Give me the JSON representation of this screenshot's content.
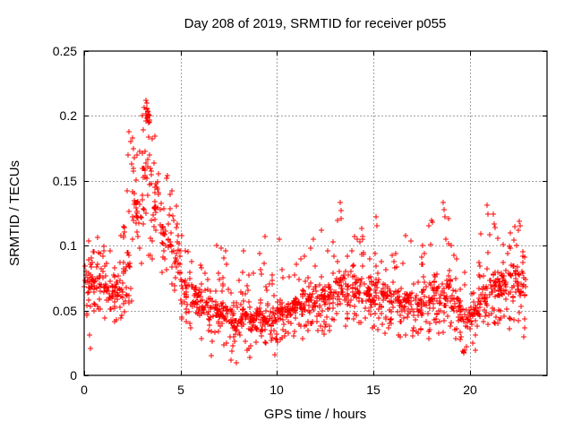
{
  "chart_data": {
    "type": "scatter",
    "title": "Day 208 of 2019, SRMTID for receiver p055",
    "xlabel": "GPS time / hours",
    "ylabel": "SRMTID / TECUs",
    "xlim": [
      0,
      24
    ],
    "ylim": [
      0,
      0.25
    ],
    "xticks": [
      {
        "v": 0,
        "label": "0"
      },
      {
        "v": 5,
        "label": "5"
      },
      {
        "v": 10,
        "label": "10"
      },
      {
        "v": 15,
        "label": "15"
      },
      {
        "v": 20,
        "label": "20"
      }
    ],
    "yticks": [
      {
        "v": 0,
        "label": "0"
      },
      {
        "v": 0.05,
        "label": "0.05"
      },
      {
        "v": 0.1,
        "label": "0.1"
      },
      {
        "v": 0.15,
        "label": "0.15"
      },
      {
        "v": 0.2,
        "label": "0.2"
      },
      {
        "v": 0.25,
        "label": "0.25"
      }
    ],
    "grid": true,
    "legend": "none",
    "marker": "plus",
    "marker_color": "#ff0000",
    "border_color": "#000000",
    "grid_color": "#a0a0a0",
    "background": "#ffffff",
    "data_x_extent": [
      0,
      22.9
    ],
    "peak": {
      "x": 3.25,
      "y": 0.212
    },
    "bin_format": [
      "t0",
      "t1",
      "min",
      "core_lo",
      "core_hi",
      "max",
      "n"
    ],
    "envelope_bins": [
      [
        0.0,
        0.5,
        0.04,
        0.055,
        0.085,
        0.105,
        36
      ],
      [
        0.5,
        1.0,
        0.042,
        0.055,
        0.088,
        0.112,
        36
      ],
      [
        1.0,
        1.5,
        0.04,
        0.052,
        0.08,
        0.1,
        34
      ],
      [
        1.5,
        2.0,
        0.04,
        0.05,
        0.082,
        0.11,
        34
      ],
      [
        2.0,
        2.5,
        0.048,
        0.062,
        0.11,
        0.19,
        32
      ],
      [
        2.5,
        3.0,
        0.07,
        0.1,
        0.155,
        0.197,
        32
      ],
      [
        3.0,
        3.5,
        0.09,
        0.125,
        0.185,
        0.21,
        34
      ],
      [
        3.5,
        4.0,
        0.085,
        0.105,
        0.16,
        0.185,
        30
      ],
      [
        4.0,
        4.5,
        0.06,
        0.085,
        0.135,
        0.168,
        30
      ],
      [
        4.5,
        5.0,
        0.05,
        0.068,
        0.11,
        0.14,
        30
      ],
      [
        5.0,
        5.5,
        0.038,
        0.05,
        0.082,
        0.1,
        34
      ],
      [
        5.5,
        6.0,
        0.032,
        0.045,
        0.075,
        0.095,
        34
      ],
      [
        6.0,
        6.5,
        0.025,
        0.04,
        0.07,
        0.092,
        34
      ],
      [
        6.5,
        7.0,
        0.015,
        0.035,
        0.065,
        0.088,
        34
      ],
      [
        7.0,
        7.5,
        0.018,
        0.032,
        0.062,
        0.098,
        36
      ],
      [
        7.5,
        8.0,
        0.01,
        0.03,
        0.055,
        0.075,
        36
      ],
      [
        8.0,
        8.5,
        0.015,
        0.032,
        0.058,
        0.092,
        36
      ],
      [
        8.5,
        9.0,
        0.015,
        0.03,
        0.055,
        0.08,
        36
      ],
      [
        9.0,
        9.5,
        0.02,
        0.033,
        0.058,
        0.095,
        36
      ],
      [
        9.5,
        10.0,
        0.018,
        0.03,
        0.055,
        0.085,
        36
      ],
      [
        10.0,
        10.5,
        0.025,
        0.038,
        0.062,
        0.09,
        36
      ],
      [
        10.5,
        11.0,
        0.028,
        0.04,
        0.065,
        0.088,
        36
      ],
      [
        11.0,
        11.5,
        0.028,
        0.04,
        0.068,
        0.092,
        36
      ],
      [
        11.5,
        12.0,
        0.03,
        0.042,
        0.072,
        0.1,
        36
      ],
      [
        12.0,
        12.5,
        0.028,
        0.042,
        0.075,
        0.108,
        36
      ],
      [
        12.5,
        13.0,
        0.032,
        0.045,
        0.078,
        0.105,
        34
      ],
      [
        13.0,
        13.5,
        0.035,
        0.048,
        0.085,
        0.125,
        34
      ],
      [
        13.5,
        14.0,
        0.035,
        0.048,
        0.08,
        0.105,
        34
      ],
      [
        14.0,
        14.5,
        0.038,
        0.05,
        0.08,
        0.11,
        34
      ],
      [
        14.5,
        15.0,
        0.032,
        0.045,
        0.075,
        0.105,
        34
      ],
      [
        15.0,
        15.5,
        0.035,
        0.048,
        0.08,
        0.115,
        34
      ],
      [
        15.5,
        16.0,
        0.032,
        0.045,
        0.072,
        0.1,
        34
      ],
      [
        16.0,
        16.5,
        0.028,
        0.042,
        0.07,
        0.1,
        34
      ],
      [
        16.5,
        17.0,
        0.028,
        0.04,
        0.07,
        0.105,
        34
      ],
      [
        17.0,
        17.5,
        0.028,
        0.04,
        0.068,
        0.095,
        34
      ],
      [
        17.5,
        18.0,
        0.028,
        0.042,
        0.075,
        0.112,
        34
      ],
      [
        18.0,
        18.5,
        0.032,
        0.045,
        0.08,
        0.12,
        34
      ],
      [
        18.5,
        19.0,
        0.032,
        0.045,
        0.08,
        0.125,
        34
      ],
      [
        19.0,
        19.5,
        0.028,
        0.04,
        0.07,
        0.095,
        34
      ],
      [
        19.5,
        20.0,
        0.015,
        0.03,
        0.06,
        0.08,
        32
      ],
      [
        20.0,
        20.5,
        0.018,
        0.032,
        0.062,
        0.088,
        34
      ],
      [
        20.5,
        21.0,
        0.028,
        0.042,
        0.075,
        0.12,
        34
      ],
      [
        21.0,
        21.5,
        0.038,
        0.052,
        0.085,
        0.12,
        36
      ],
      [
        21.5,
        22.0,
        0.04,
        0.055,
        0.085,
        0.11,
        36
      ],
      [
        22.0,
        22.5,
        0.035,
        0.055,
        0.09,
        0.115,
        36
      ],
      [
        22.5,
        22.9,
        0.028,
        0.05,
        0.09,
        0.118,
        28
      ]
    ],
    "outliers": [
      [
        3.18,
        0.2
      ],
      [
        3.22,
        0.202
      ],
      [
        3.25,
        0.198
      ],
      [
        3.28,
        0.203
      ],
      [
        3.31,
        0.199
      ],
      [
        3.34,
        0.201
      ],
      [
        3.37,
        0.197
      ],
      [
        3.41,
        0.2
      ],
      [
        3.24,
        0.205
      ],
      [
        3.3,
        0.204
      ],
      [
        3.2,
        0.196
      ],
      [
        3.35,
        0.195
      ],
      [
        3.22,
        0.212
      ],
      [
        3.27,
        0.21
      ],
      [
        3.26,
        0.206
      ],
      [
        2.32,
        0.188
      ],
      [
        2.4,
        0.18
      ],
      [
        2.28,
        0.17
      ],
      [
        2.48,
        0.163
      ],
      [
        2.55,
        0.175
      ],
      [
        2.62,
        0.168
      ],
      [
        13.27,
        0.133
      ],
      [
        13.3,
        0.127
      ],
      [
        13.33,
        0.121
      ],
      [
        15.12,
        0.122
      ],
      [
        15.18,
        0.115
      ],
      [
        18.6,
        0.133
      ],
      [
        18.66,
        0.128
      ],
      [
        18.7,
        0.122
      ],
      [
        20.88,
        0.131
      ],
      [
        20.94,
        0.124
      ],
      [
        21.22,
        0.124
      ],
      [
        21.28,
        0.117
      ],
      [
        12.28,
        0.112
      ],
      [
        14.38,
        0.113
      ],
      [
        14.44,
        0.107
      ],
      [
        11.88,
        0.105
      ],
      [
        10.12,
        0.105
      ],
      [
        9.38,
        0.107
      ],
      [
        6.88,
        0.1
      ],
      [
        8.28,
        0.096
      ],
      [
        17.88,
        0.115
      ],
      [
        18.08,
        0.118
      ],
      [
        22.58,
        0.119
      ],
      [
        22.52,
        0.112
      ],
      [
        16.68,
        0.108
      ],
      [
        19.02,
        0.1
      ],
      [
        7.12,
        0.098
      ],
      [
        4.28,
        0.152
      ],
      [
        4.55,
        0.142
      ],
      [
        5.08,
        0.108
      ],
      [
        0.26,
        0.031
      ],
      [
        0.34,
        0.021
      ],
      [
        7.62,
        0.012
      ],
      [
        7.88,
        0.01
      ],
      [
        8.58,
        0.014
      ],
      [
        19.68,
        0.018
      ],
      [
        19.84,
        0.022
      ],
      [
        22.8,
        0.03
      ],
      [
        6.58,
        0.015
      ],
      [
        9.9,
        0.016
      ]
    ],
    "seed": 7
  }
}
